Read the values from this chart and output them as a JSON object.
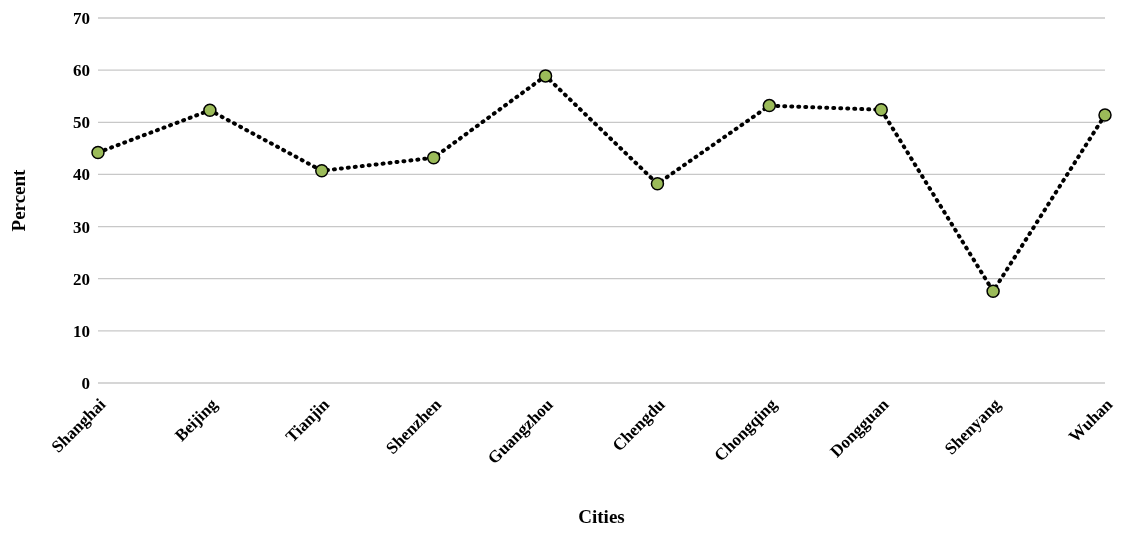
{
  "chart_data": {
    "type": "line",
    "xlabel": "Cities",
    "ylabel": "Percent",
    "categories": [
      "Shanghai",
      "Beijing",
      "Tianjin",
      "Shenzhen",
      "Guangzhou",
      "Chengdu",
      "Chongqing",
      "Dongguan",
      "Shenyang",
      "Wuhan"
    ],
    "series": [
      {
        "color": "#000000",
        "colors": [
          "#9bbb59",
          "#9bbb59",
          "#9bbb59",
          "#9bbb59",
          "#9bbb59",
          "#9bbb59",
          "#9bbb59",
          "#9bbb59",
          "#9bbb59",
          "#9bbb59"
        ],
        "values": [
          44.2,
          52.3,
          40.7,
          43.2,
          58.9,
          38.2,
          53.2,
          52.4,
          17.6,
          51.4
        ]
      }
    ],
    "marker": "circle",
    "line_style": "dotted",
    "ylim": [
      0,
      70
    ],
    "yticks": [
      0,
      10,
      20,
      30,
      40,
      50,
      60,
      70
    ],
    "grid": "y"
  }
}
